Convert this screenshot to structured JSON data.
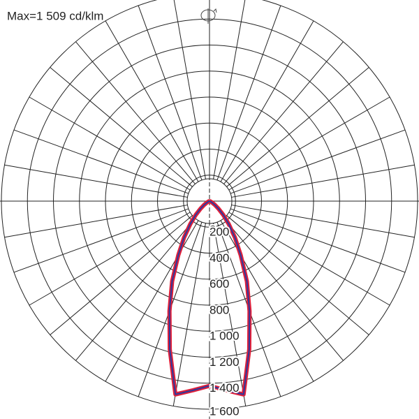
{
  "chart_data": {
    "type": "polar",
    "title": "Max=1 509 cd/klm",
    "angles": [
      -90,
      -85,
      -80,
      -75,
      -70,
      -65,
      -60,
      -55,
      -50,
      -45,
      -40,
      -35,
      -30,
      -25,
      -20,
      -15,
      -10,
      -5,
      0,
      5,
      10,
      15,
      20,
      25,
      30,
      35,
      40,
      45,
      50,
      55,
      60,
      65,
      70,
      75,
      80,
      85,
      90
    ],
    "series": [
      {
        "color": "#e0203a",
        "values": [
          0,
          1,
          3,
          5,
          8,
          15,
          25,
          50,
          90,
          150,
          230,
          340,
          480,
          680,
          900,
          1180,
          1509,
          1460,
          1420,
          1460,
          1509,
          1180,
          900,
          680,
          480,
          340,
          230,
          150,
          90,
          50,
          25,
          15,
          8,
          5,
          3,
          1,
          0
        ]
      },
      {
        "color": "#2b3a9e",
        "values": [
          0,
          1,
          3,
          5,
          8,
          15,
          25,
          50,
          90,
          150,
          230,
          340,
          480,
          680,
          900,
          1180,
          1509,
          1460,
          1420,
          1460,
          1509,
          1180,
          900,
          680,
          480,
          340,
          230,
          150,
          90,
          50,
          25,
          15,
          8,
          5,
          3,
          1,
          0
        ]
      }
    ],
    "rlim": [
      0,
      1600
    ],
    "rticks": [
      0,
      200,
      400,
      600,
      800,
      {
        "value": 1000,
        "label": "1 000"
      },
      {
        "value": 1200,
        "label": "1 200"
      },
      {
        "value": 1400,
        "label": "1 400"
      },
      {
        "value": 1600,
        "label": "1 600"
      }
    ]
  }
}
